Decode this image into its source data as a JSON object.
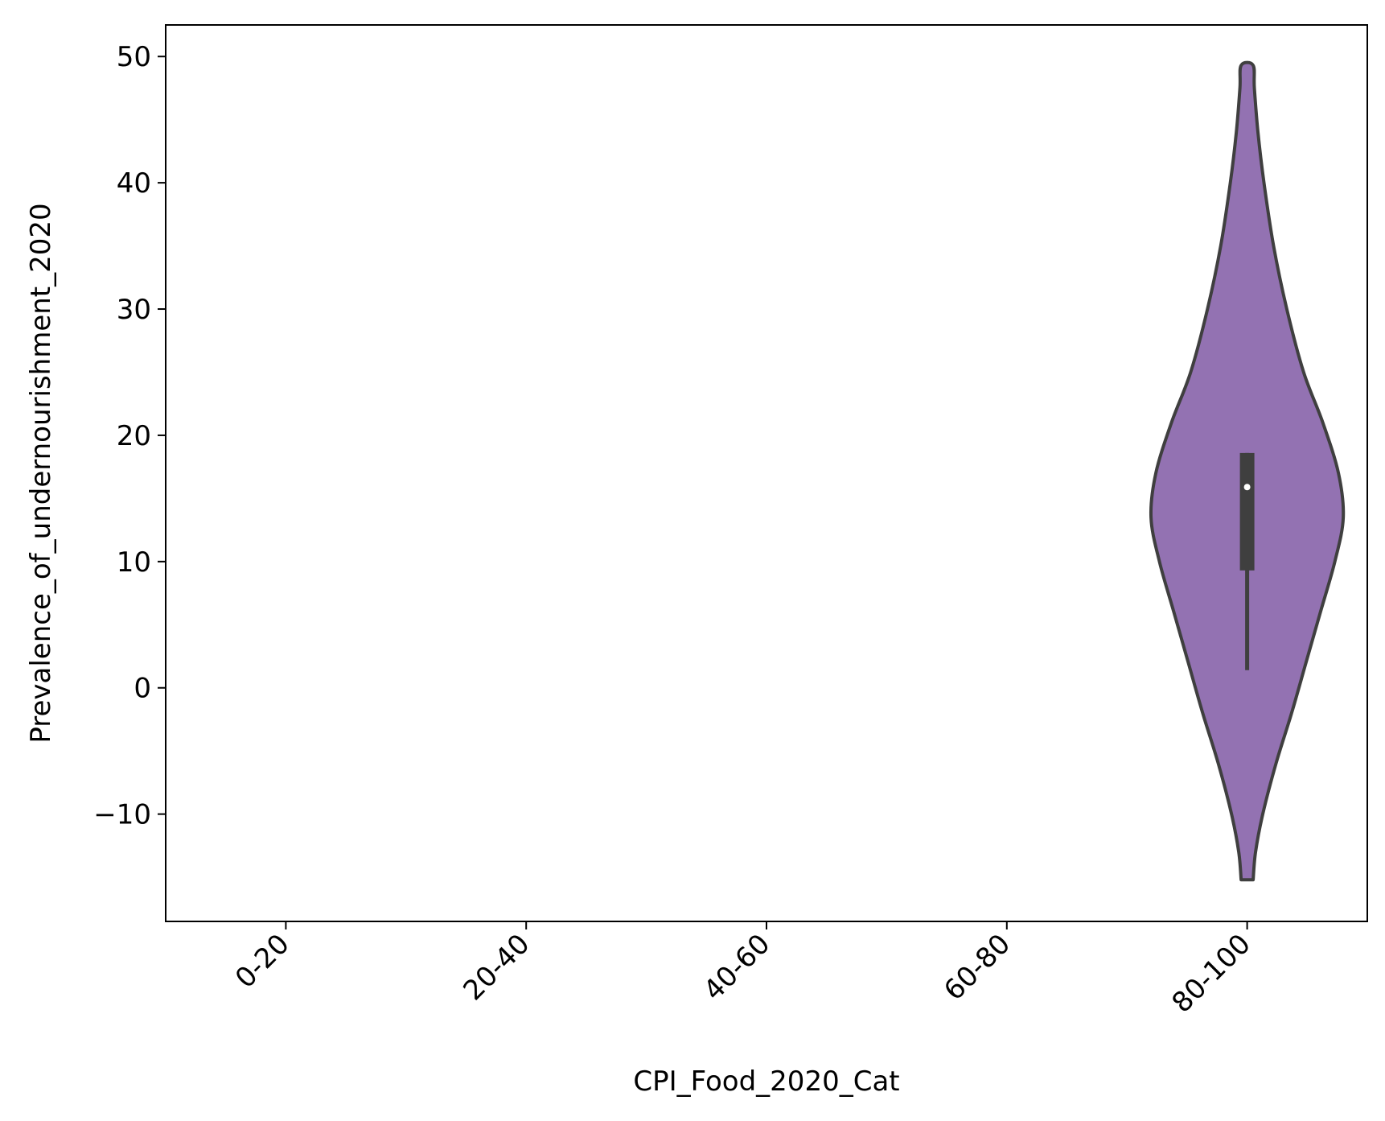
{
  "chart_data": {
    "type": "violin",
    "title": "",
    "xlabel": "CPI_Food_2020_Cat",
    "ylabel": "Prevalence_of_undernourishment_2020",
    "categories": [
      "0-20",
      "20-40",
      "40-60",
      "60-80",
      "80-100"
    ],
    "ylim": [
      -18.5,
      52.5
    ],
    "yticks": [
      -10,
      0,
      10,
      20,
      30,
      40,
      50
    ],
    "ytick_labels": [
      "−10",
      "0",
      "10",
      "20",
      "30",
      "40",
      "50"
    ],
    "grid": false,
    "legend": "none",
    "violins": [
      {
        "category": "80-100",
        "color": "#9372b2",
        "edge_color": "#3f3f3f",
        "density_profile": [
          {
            "y": -15.2,
            "w": 0.05
          },
          {
            "y": -13.0,
            "w": 0.07
          },
          {
            "y": -10.0,
            "w": 0.13
          },
          {
            "y": -6.0,
            "w": 0.24
          },
          {
            "y": -2.0,
            "w": 0.37
          },
          {
            "y": 2.0,
            "w": 0.49
          },
          {
            "y": 6.0,
            "w": 0.61
          },
          {
            "y": 10.0,
            "w": 0.73
          },
          {
            "y": 13.5,
            "w": 0.8
          },
          {
            "y": 17.0,
            "w": 0.76
          },
          {
            "y": 21.0,
            "w": 0.63
          },
          {
            "y": 25.0,
            "w": 0.47
          },
          {
            "y": 30.0,
            "w": 0.33
          },
          {
            "y": 35.0,
            "w": 0.22
          },
          {
            "y": 40.0,
            "w": 0.14
          },
          {
            "y": 44.0,
            "w": 0.09
          },
          {
            "y": 47.5,
            "w": 0.06
          },
          {
            "y": 49.3,
            "w": 0.05
          }
        ],
        "box": {
          "q1": 9.3,
          "median": 15.9,
          "q3": 18.6,
          "whisker_low": 1.4,
          "whisker_high": 18.6
        }
      }
    ]
  }
}
